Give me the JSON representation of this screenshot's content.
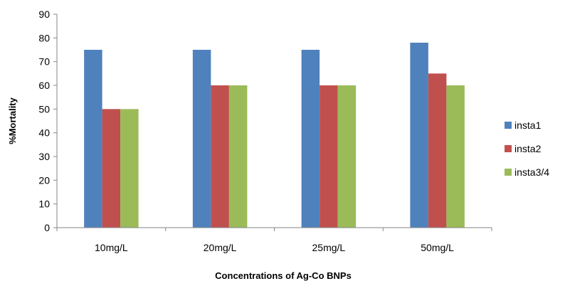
{
  "chart_data": {
    "type": "bar",
    "categories": [
      "10mg/L",
      "20mg/L",
      "25mg/L",
      "50mg/L"
    ],
    "series": [
      {
        "name": "insta1",
        "values": [
          75,
          75,
          75,
          78
        ],
        "color": "#4F81BD"
      },
      {
        "name": "insta2",
        "values": [
          50,
          60,
          60,
          65
        ],
        "color": "#C0504D"
      },
      {
        "name": "insta3/4",
        "values": [
          50,
          60,
          60,
          60
        ],
        "color": "#9BBB59"
      }
    ],
    "xlabel": "Concentrations of Ag-Co BNPs",
    "ylabel": "%Mortality",
    "ylim": [
      0,
      90
    ],
    "yticks": [
      0,
      10,
      20,
      30,
      40,
      50,
      60,
      70,
      80,
      90
    ],
    "grid": false,
    "legend": "right"
  }
}
